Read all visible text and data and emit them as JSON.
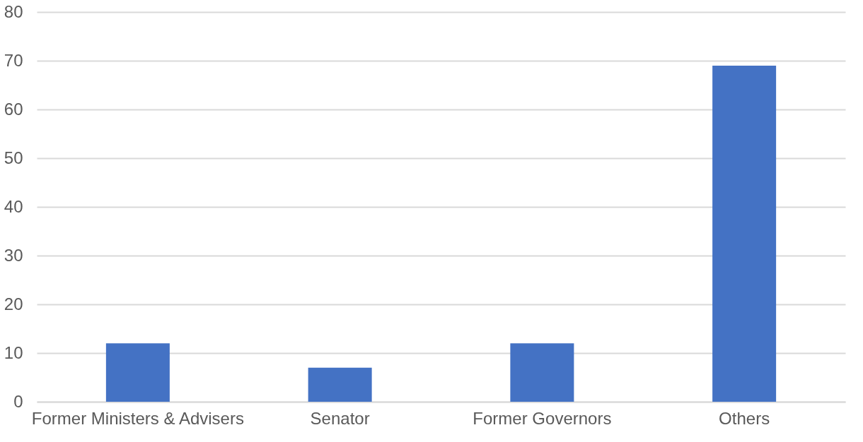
{
  "chart_data": {
    "type": "bar",
    "categories": [
      "Former Ministers & Advisers",
      "Senator",
      "Former Governors",
      "Others"
    ],
    "values": [
      12,
      7,
      12,
      69
    ],
    "color": "#4472c4",
    "ylim": [
      0,
      80
    ],
    "yticks": [
      0,
      10,
      20,
      30,
      40,
      50,
      60,
      70,
      80
    ],
    "grid": "y"
  }
}
